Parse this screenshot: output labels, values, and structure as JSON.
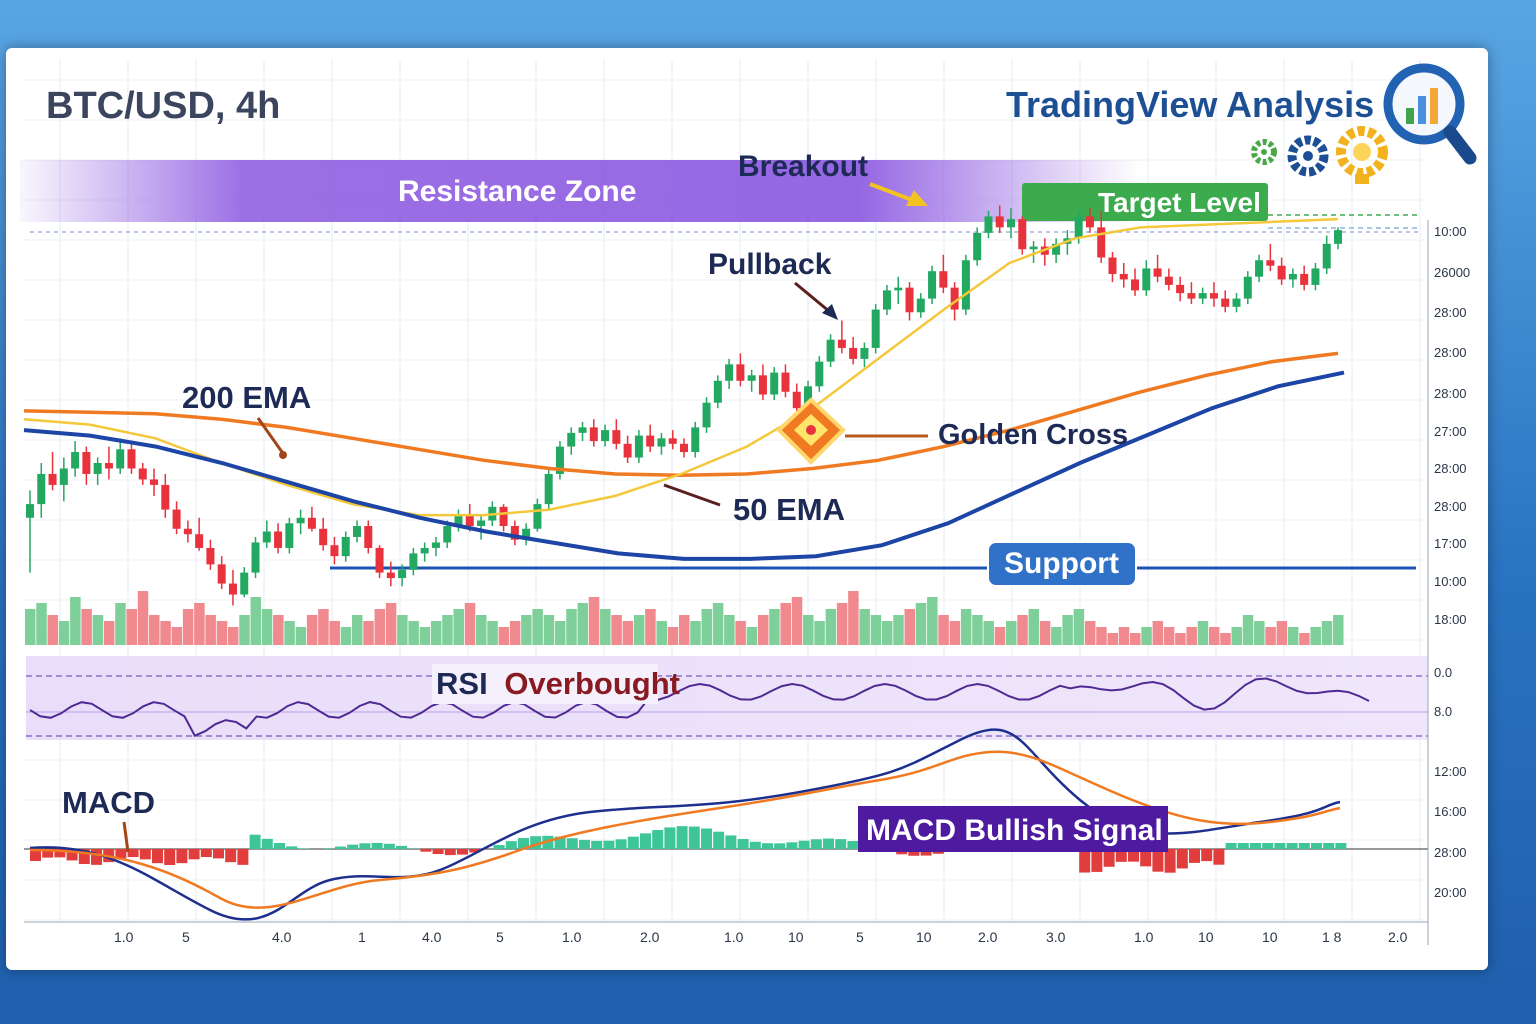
{
  "header": {
    "symbol": "BTC/USD, 4h",
    "brand": "TradingView Analysis"
  },
  "icons": [
    "magnifier-chart-icon",
    "gear-icon",
    "gear-icon",
    "lightbulb-gear-icon"
  ],
  "annotations": {
    "resistance_zone": "Resistance Zone",
    "breakout": "Breakout",
    "target_level": "Target Level",
    "pullback": "Pullback",
    "ema200": "200 EMA",
    "golden_cross": "Golden Cross",
    "ema50": "50 EMA",
    "support": "Support",
    "rsi_label_1": "RSI",
    "rsi_label_2": "Overbought",
    "macd": "MACD",
    "macd_signal": "MACD Bullish Signal"
  },
  "colors": {
    "up": "#23a862",
    "down": "#e8323c",
    "ema200": "#f07a22",
    "ema50": "#1d45a6",
    "fast_ema": "#f3c83a",
    "resistance_band": "#8a56e0",
    "target_badge": "#3bab4e",
    "support_badge": "#2f72c8",
    "macd_signal_badge": "#4d1aa0"
  },
  "chart_data": [
    {
      "type": "candlestick",
      "ohlc": [
        [
          3,
          4,
          1,
          3.5
        ],
        [
          3.5,
          5,
          3,
          4.6
        ],
        [
          4.6,
          5.4,
          4,
          4.2
        ],
        [
          4.2,
          5.2,
          3.6,
          4.8
        ],
        [
          4.8,
          5.8,
          4.5,
          5.4
        ],
        [
          5.4,
          5.6,
          4.2,
          4.6
        ],
        [
          4.6,
          5.2,
          4.2,
          5
        ],
        [
          5,
          5.6,
          4.4,
          4.8
        ],
        [
          4.8,
          5.9,
          4.6,
          5.5
        ],
        [
          5.5,
          5.7,
          4.6,
          4.8
        ],
        [
          4.8,
          5,
          4.2,
          4.4
        ],
        [
          4.4,
          4.8,
          3.8,
          4.2
        ],
        [
          4.2,
          4.6,
          3,
          3.3
        ],
        [
          3.3,
          3.6,
          2.4,
          2.6
        ],
        [
          2.6,
          2.9,
          2.1,
          2.4
        ],
        [
          2.4,
          3,
          1.8,
          1.9
        ],
        [
          1.9,
          2.2,
          1.1,
          1.3
        ],
        [
          1.3,
          1.6,
          0.4,
          0.6
        ],
        [
          0.6,
          1.1,
          -0.2,
          0.2
        ],
        [
          0.2,
          1.2,
          0.1,
          1
        ],
        [
          1,
          2.3,
          0.8,
          2.1
        ],
        [
          2.1,
          2.9,
          1.9,
          2.5
        ],
        [
          2.5,
          2.8,
          1.7,
          1.9
        ],
        [
          1.9,
          3,
          1.7,
          2.8
        ],
        [
          2.8,
          3.3,
          2.4,
          3
        ],
        [
          3,
          3.4,
          2.5,
          2.6
        ],
        [
          2.6,
          3,
          1.8,
          2
        ],
        [
          2,
          2.3,
          1.3,
          1.6
        ],
        [
          1.6,
          2.5,
          1.4,
          2.3
        ],
        [
          2.3,
          2.9,
          2.1,
          2.7
        ],
        [
          2.7,
          2.9,
          1.7,
          1.9
        ],
        [
          1.9,
          2,
          0.8,
          1
        ],
        [
          1,
          1.4,
          0.5,
          0.8
        ],
        [
          0.8,
          1.3,
          0.5,
          1.1
        ],
        [
          1.1,
          1.9,
          0.9,
          1.7
        ],
        [
          1.7,
          2.1,
          1.4,
          1.9
        ],
        [
          1.9,
          2.3,
          1.6,
          2.1
        ],
        [
          2.1,
          2.9,
          1.9,
          2.7
        ],
        [
          2.7,
          3.3,
          2.5,
          3.1
        ],
        [
          3.1,
          3.5,
          2.5,
          2.7
        ],
        [
          2.7,
          3.1,
          2.2,
          2.9
        ],
        [
          2.9,
          3.6,
          2.7,
          3.4
        ],
        [
          3.4,
          3.5,
          2.5,
          2.7
        ],
        [
          2.7,
          2.9,
          2,
          2.2
        ],
        [
          2.2,
          2.8,
          2,
          2.6
        ],
        [
          2.6,
          3.7,
          2.5,
          3.5
        ],
        [
          3.5,
          4.8,
          3.3,
          4.6
        ],
        [
          4.6,
          5.8,
          4.4,
          5.6
        ],
        [
          5.6,
          6.3,
          5.3,
          6.1
        ],
        [
          6.1,
          6.5,
          5.8,
          6.3
        ],
        [
          6.3,
          6.6,
          5.6,
          5.8
        ],
        [
          5.8,
          6.4,
          5.6,
          6.2
        ],
        [
          6.2,
          6.6,
          5.5,
          5.7
        ],
        [
          5.7,
          6,
          5,
          5.2
        ],
        [
          5.2,
          6.2,
          5,
          6
        ],
        [
          6,
          6.4,
          5.4,
          5.6
        ],
        [
          5.6,
          6.1,
          5.3,
          5.9
        ],
        [
          5.9,
          6.2,
          5.5,
          5.7
        ],
        [
          5.7,
          5.9,
          5.2,
          5.4
        ],
        [
          5.4,
          6.5,
          5.2,
          6.3
        ],
        [
          6.3,
          7.4,
          6.1,
          7.2
        ],
        [
          7.2,
          8.2,
          7,
          8
        ],
        [
          8,
          8.8,
          7.7,
          8.6
        ],
        [
          8.6,
          9,
          7.8,
          8
        ],
        [
          8,
          8.4,
          7.6,
          8.2
        ],
        [
          8.2,
          8.6,
          7.3,
          7.5
        ],
        [
          7.5,
          8.5,
          7.3,
          8.3
        ],
        [
          8.3,
          8.6,
          7.4,
          7.6
        ],
        [
          7.6,
          7.9,
          6.8,
          7
        ],
        [
          7,
          8,
          6.8,
          7.8
        ],
        [
          7.8,
          8.9,
          7.6,
          8.7
        ],
        [
          8.7,
          9.7,
          8.5,
          9.5
        ],
        [
          9.5,
          10.2,
          9,
          9.2
        ],
        [
          9.2,
          9.6,
          8.6,
          8.8
        ],
        [
          8.8,
          9.4,
          8.5,
          9.2
        ],
        [
          9.2,
          10.8,
          9,
          10.6
        ],
        [
          10.6,
          11.5,
          10.4,
          11.3
        ],
        [
          11.3,
          11.8,
          10.8,
          11.4
        ],
        [
          11.4,
          11.6,
          10.2,
          10.5
        ],
        [
          10.5,
          11.2,
          10.3,
          11
        ],
        [
          11,
          12.2,
          10.8,
          12
        ],
        [
          12,
          12.6,
          11.2,
          11.4
        ],
        [
          11.4,
          11.6,
          10.2,
          10.6
        ],
        [
          10.6,
          12.6,
          10.4,
          12.4
        ],
        [
          12.4,
          13.6,
          12.2,
          13.4
        ],
        [
          13.4,
          14.2,
          13.2,
          14
        ],
        [
          14,
          14.4,
          13.4,
          13.6
        ],
        [
          13.6,
          14.3,
          13.2,
          13.9
        ],
        [
          13.9,
          14,
          12.6,
          12.8
        ],
        [
          12.8,
          13.1,
          12.3,
          12.9
        ],
        [
          12.9,
          13.2,
          12.2,
          12.6
        ],
        [
          12.6,
          13.2,
          12.3,
          13
        ],
        [
          13,
          13.5,
          12.6,
          13.2
        ],
        [
          13.2,
          14.2,
          13,
          14
        ],
        [
          14,
          14.3,
          13.4,
          13.6
        ],
        [
          13.6,
          14.2,
          12.3,
          12.5
        ],
        [
          12.5,
          12.7,
          11.6,
          11.9
        ],
        [
          11.9,
          12.3,
          11.4,
          11.7
        ],
        [
          11.7,
          12.1,
          11.1,
          11.3
        ],
        [
          11.3,
          12.4,
          11.1,
          12.1
        ],
        [
          12.1,
          12.6,
          11.6,
          11.8
        ],
        [
          11.8,
          12.1,
          11.3,
          11.5
        ],
        [
          11.5,
          11.8,
          10.9,
          11.2
        ],
        [
          11.2,
          11.6,
          10.8,
          11
        ],
        [
          11,
          11.4,
          10.8,
          11.2
        ],
        [
          11.2,
          11.6,
          10.7,
          11
        ],
        [
          11,
          11.3,
          10.5,
          10.7
        ],
        [
          10.7,
          11.2,
          10.5,
          11
        ],
        [
          11,
          12,
          10.8,
          11.8
        ],
        [
          11.8,
          12.6,
          11.6,
          12.4
        ],
        [
          12.4,
          13,
          12,
          12.2
        ],
        [
          12.2,
          12.5,
          11.5,
          11.7
        ],
        [
          11.7,
          12.1,
          11.4,
          11.9
        ],
        [
          11.9,
          12.2,
          11.3,
          11.5
        ],
        [
          11.5,
          12.3,
          11.3,
          12.1
        ],
        [
          12.1,
          13.3,
          11.9,
          13
        ],
        [
          13,
          13.6,
          12.8,
          13.5
        ]
      ],
      "ema200": [
        6.9,
        6.85,
        6.8,
        6.6,
        6.3,
        5.9,
        5.5,
        5.1,
        4.8,
        4.6,
        4.55,
        4.6,
        4.8,
        5.1,
        5.6,
        6.2,
        6.9,
        7.6,
        8.2,
        8.7,
        9.0
      ],
      "ema50": [
        6.2,
        6.0,
        5.6,
        5.0,
        4.3,
        3.6,
        3.0,
        2.5,
        2.1,
        1.7,
        1.5,
        1.5,
        1.6,
        2.0,
        2.8,
        3.9,
        5.0,
        6.0,
        7.0,
        7.8,
        8.3
      ],
      "fast_ema": [
        6.6,
        6.4,
        5.9,
        5.0,
        4.2,
        3.5,
        3.1,
        3.1,
        3.3,
        3.8,
        4.6,
        5.6,
        7.0,
        8.8,
        10.6,
        12.3,
        13.2,
        13.6,
        13.7,
        13.8,
        13.9
      ],
      "volume": [
        6,
        7,
        5,
        4,
        8,
        6,
        5,
        4,
        7,
        6,
        9,
        5,
        4,
        3,
        6,
        7,
        5,
        4,
        3,
        5,
        8,
        6,
        5,
        4,
        3,
        5,
        6,
        4,
        3,
        5,
        4,
        6,
        7,
        5,
        4,
        3,
        4,
        5,
        6,
        7,
        5,
        4,
        3,
        4,
        5,
        6,
        5,
        4,
        6,
        7,
        8,
        6,
        5,
        4,
        5,
        6,
        4,
        3,
        5,
        4,
        6,
        7,
        5,
        4,
        3,
        5,
        6,
        7,
        8,
        5,
        4,
        6,
        7,
        9,
        6,
        5,
        4,
        5,
        6,
        7,
        8,
        5,
        4,
        6,
        5,
        4,
        3,
        4,
        5,
        6,
        4,
        3,
        5,
        6,
        4,
        3,
        2,
        3,
        2,
        3,
        4,
        3,
        2,
        3,
        4,
        3,
        2,
        3,
        5,
        4,
        3,
        4,
        3,
        2,
        3,
        4,
        5
      ]
    }
  ]
}
